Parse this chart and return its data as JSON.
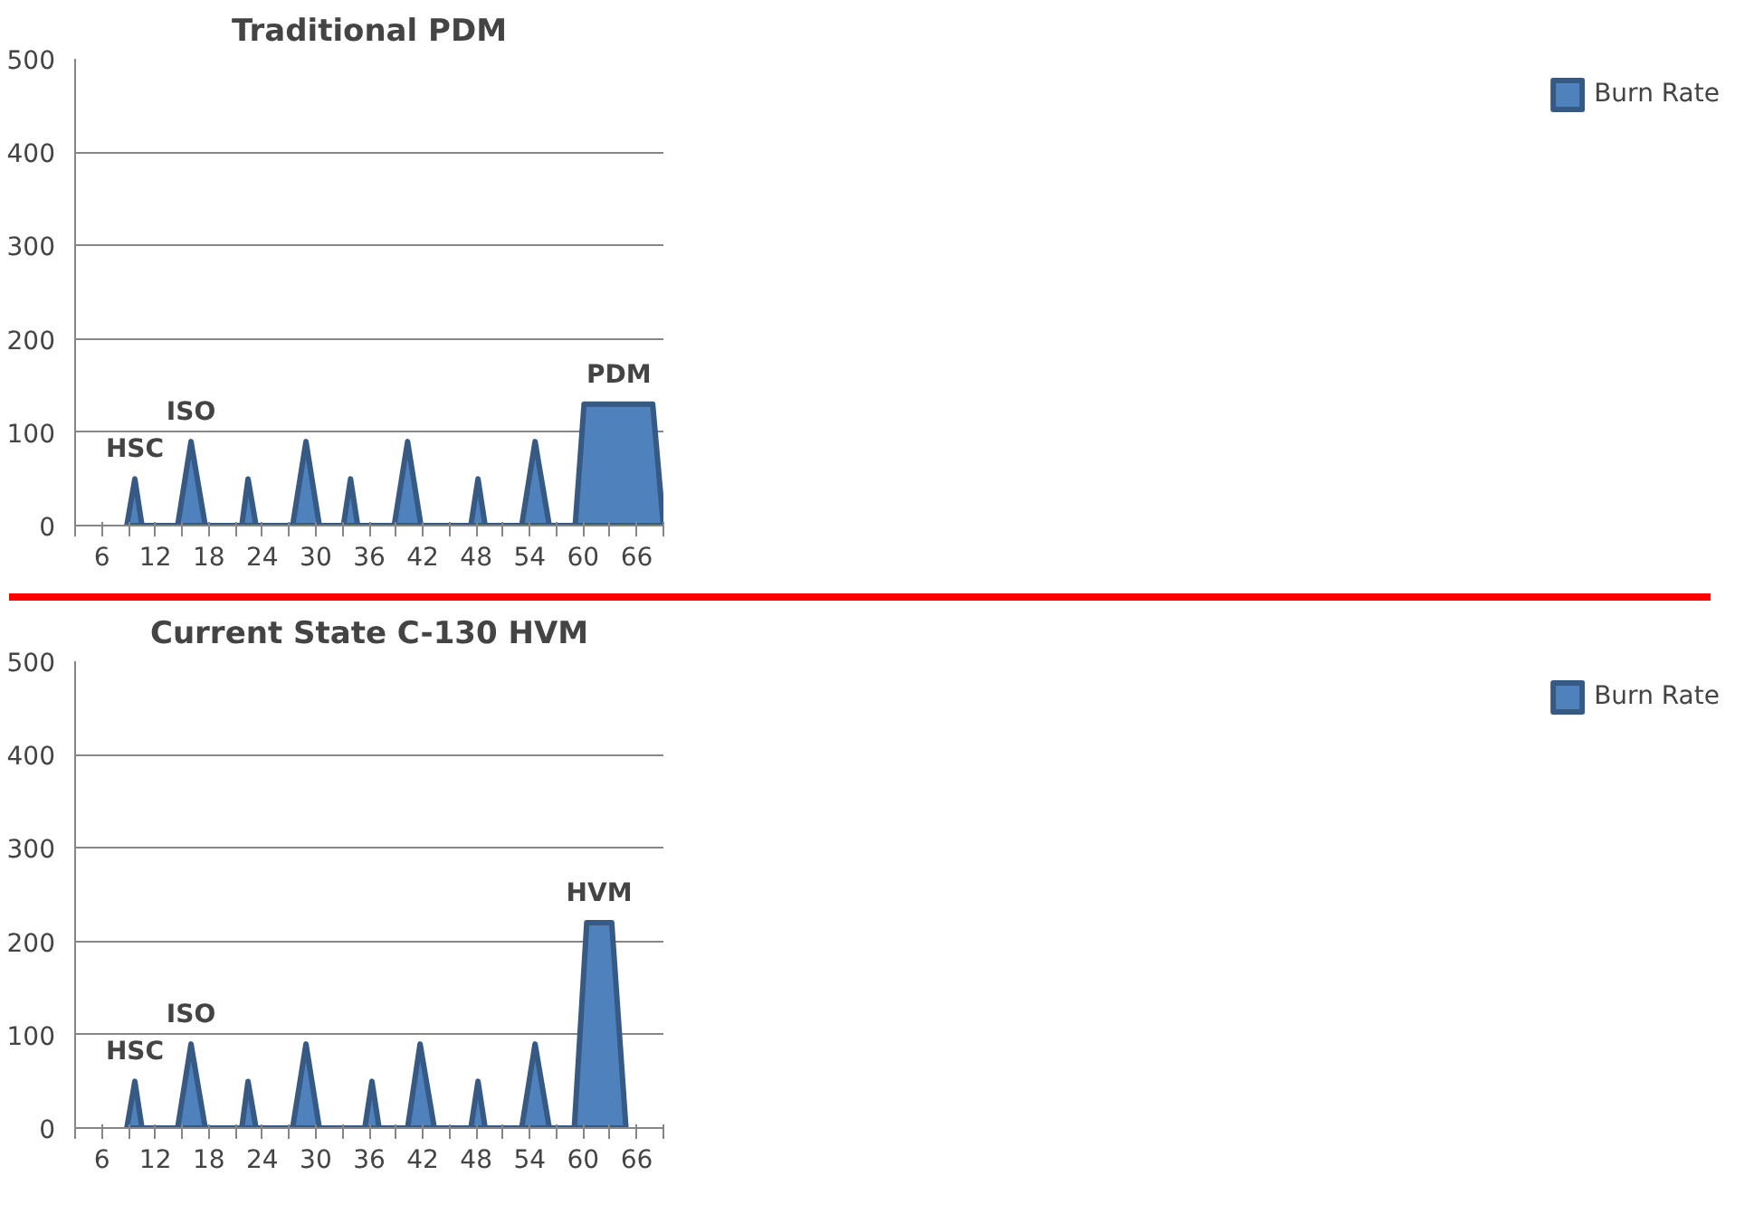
{
  "chart_data": [
    {
      "type": "area",
      "title": "Traditional PDM",
      "xlim": [
        3,
        69
      ],
      "xticks": [
        {
          "value": 3,
          "label": null
        },
        6,
        {
          "value": 9,
          "label": null
        },
        12,
        {
          "value": 15,
          "label": null
        },
        18,
        {
          "value": 21,
          "label": null
        },
        24,
        {
          "value": 27,
          "label": null
        },
        30,
        {
          "value": 33,
          "label": null
        },
        36,
        {
          "value": 39,
          "label": null
        },
        42,
        {
          "value": 45,
          "label": null
        },
        48,
        {
          "value": 51,
          "label": null
        },
        54,
        {
          "value": 57,
          "label": null
        },
        60,
        {
          "value": 63,
          "label": null
        },
        66,
        {
          "value": 69,
          "label": null
        }
      ],
      "ylim": [
        0,
        500
      ],
      "yticks": [
        0,
        100,
        200,
        300,
        400,
        500
      ],
      "grid": "y",
      "legend": "right",
      "series": [
        {
          "name": "Burn Rate",
          "color": "#4f81bd",
          "x": [
            8.8,
            9.7,
            10.5,
            14.5,
            16.0,
            17.6,
            21.7,
            22.4,
            23.3,
            27.4,
            28.9,
            30.4,
            33.1,
            33.9,
            34.7,
            38.8,
            40.3,
            41.8,
            47.4,
            48.2,
            49.0,
            53.1,
            54.6,
            56.2,
            59.1,
            60.1,
            67.8,
            69.0
          ],
          "values": [
            0,
            50,
            0,
            0,
            90,
            0,
            0,
            50,
            0,
            0,
            90,
            0,
            0,
            50,
            0,
            0,
            90,
            0,
            0,
            50,
            0,
            0,
            90,
            0,
            0,
            130,
            130,
            0
          ]
        }
      ],
      "annotations": [
        {
          "text": "HSC",
          "x": 9.7,
          "y": 50
        },
        {
          "text": "ISO",
          "x": 16.0,
          "y": 90
        },
        {
          "text": "PDM",
          "x": 64,
          "y": 130
        }
      ]
    },
    {
      "type": "area",
      "title": "Current State C-130 HVM",
      "xlim": [
        3,
        69
      ],
      "xticks": [
        {
          "value": 3,
          "label": null
        },
        6,
        {
          "value": 9,
          "label": null
        },
        12,
        {
          "value": 15,
          "label": null
        },
        18,
        {
          "value": 21,
          "label": null
        },
        24,
        {
          "value": 27,
          "label": null
        },
        30,
        {
          "value": 33,
          "label": null
        },
        36,
        {
          "value": 39,
          "label": null
        },
        42,
        {
          "value": 45,
          "label": null
        },
        48,
        {
          "value": 51,
          "label": null
        },
        54,
        {
          "value": 57,
          "label": null
        },
        60,
        {
          "value": 63,
          "label": null
        },
        66,
        {
          "value": 69,
          "label": null
        }
      ],
      "ylim": [
        0,
        500
      ],
      "yticks": [
        0,
        100,
        200,
        300,
        400,
        500
      ],
      "grid": "y",
      "legend": "right",
      "series": [
        {
          "name": "Burn Rate",
          "color": "#4f81bd",
          "x": [
            8.8,
            9.7,
            10.5,
            14.5,
            16.0,
            17.6,
            21.7,
            22.4,
            23.3,
            27.4,
            28.9,
            30.4,
            35.5,
            36.3,
            37.1,
            40.3,
            41.7,
            43.3,
            47.4,
            48.2,
            49.0,
            53.1,
            54.6,
            56.2,
            59.0,
            60.4,
            63.2,
            64.8
          ],
          "values": [
            0,
            50,
            0,
            0,
            90,
            0,
            0,
            50,
            0,
            0,
            90,
            0,
            0,
            50,
            0,
            0,
            90,
            0,
            0,
            50,
            0,
            0,
            90,
            0,
            0,
            220,
            220,
            0
          ]
        }
      ],
      "annotations": [
        {
          "text": "HSC",
          "x": 9.7,
          "y": 50
        },
        {
          "text": "ISO",
          "x": 16.0,
          "y": 90
        },
        {
          "text": "HVM",
          "x": 61.8,
          "y": 220
        }
      ]
    }
  ]
}
